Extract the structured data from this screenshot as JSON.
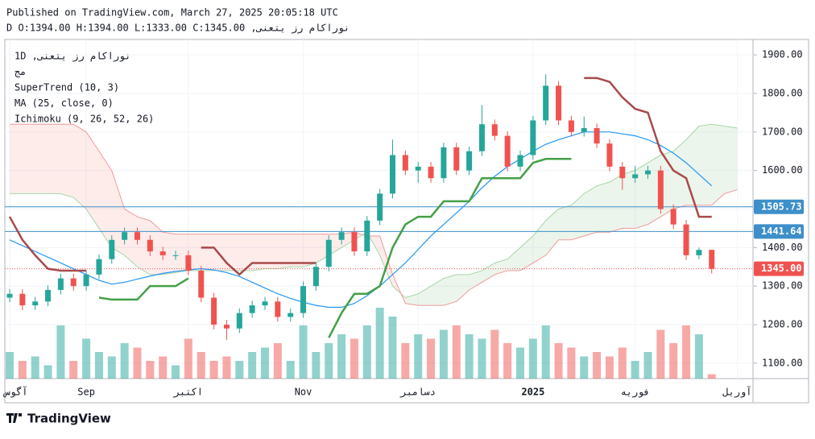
{
  "header": {
    "published": "Published on TradingView.com, March 27, 2025 20:05:18 UTC",
    "ohlc_line": "نوراکام رز یتعنی, D O:1394.00 H:1394.00 L:1333.00 C:1345.00"
  },
  "footer": {
    "brand": "TradingView"
  },
  "chart_data": {
    "type": "candlestick",
    "legend": [
      "نوراکام رز یتعنی, 1D",
      "مج",
      "SuperTrend (10, 3)",
      "MA (25, close, 0)",
      "Ichimoku (9, 26, 52, 26)"
    ],
    "ylim": [
      1060,
      1940
    ],
    "yticks": [
      {
        "value": 1100,
        "label": "1100.00"
      },
      {
        "value": 1200,
        "label": "1200.00"
      },
      {
        "value": 1300,
        "label": "1300.00"
      },
      {
        "value": 1400,
        "label": "1400.00"
      },
      {
        "value": 1500,
        "label": "1500.00"
      },
      {
        "value": 1600,
        "label": "1600.00"
      },
      {
        "value": 1700,
        "label": "1700.00"
      },
      {
        "value": 1800,
        "label": "1800.00"
      },
      {
        "value": 1900,
        "label": "1900.00"
      }
    ],
    "x_labels": [
      {
        "index": 0,
        "label": "آگوس"
      },
      {
        "index": 6,
        "label": "Sep"
      },
      {
        "index": 14,
        "label": "اکتبر"
      },
      {
        "index": 23,
        "label": "Nov"
      },
      {
        "index": 32,
        "label": "دسامبر"
      },
      {
        "index": 41,
        "label": "2025"
      },
      {
        "index": 49,
        "label": "فوریه"
      },
      {
        "index": 57,
        "label": "آوریل"
      }
    ],
    "up_color": "#26a69a",
    "down_color": "#ef5350",
    "candles": [
      [
        1270,
        1292,
        1258,
        1280
      ],
      [
        1280,
        1292,
        1238,
        1250
      ],
      [
        1250,
        1272,
        1238,
        1260
      ],
      [
        1260,
        1302,
        1248,
        1290
      ],
      [
        1290,
        1332,
        1278,
        1320
      ],
      [
        1320,
        1332,
        1288,
        1300
      ],
      [
        1300,
        1342,
        1288,
        1330
      ],
      [
        1330,
        1382,
        1318,
        1370
      ],
      [
        1370,
        1432,
        1358,
        1420
      ],
      [
        1420,
        1452,
        1408,
        1440
      ],
      [
        1440,
        1452,
        1408,
        1420
      ],
      [
        1420,
        1432,
        1378,
        1390
      ],
      [
        1390,
        1402,
        1368,
        1380
      ],
      [
        1380,
        1392,
        1368,
        1380
      ],
      [
        1380,
        1392,
        1328,
        1340
      ],
      [
        1340,
        1352,
        1258,
        1270
      ],
      [
        1270,
        1282,
        1188,
        1200
      ],
      [
        1200,
        1212,
        1160,
        1190
      ],
      [
        1190,
        1242,
        1178,
        1230
      ],
      [
        1230,
        1262,
        1218,
        1250
      ],
      [
        1250,
        1272,
        1238,
        1260
      ],
      [
        1260,
        1272,
        1208,
        1220
      ],
      [
        1220,
        1242,
        1208,
        1230
      ],
      [
        1230,
        1312,
        1218,
        1300
      ],
      [
        1300,
        1362,
        1288,
        1350
      ],
      [
        1350,
        1432,
        1338,
        1420
      ],
      [
        1420,
        1452,
        1408,
        1440
      ],
      [
        1440,
        1452,
        1378,
        1390
      ],
      [
        1390,
        1482,
        1378,
        1470
      ],
      [
        1470,
        1552,
        1458,
        1540
      ],
      [
        1540,
        1680,
        1528,
        1640
      ],
      [
        1640,
        1652,
        1588,
        1600
      ],
      [
        1600,
        1622,
        1568,
        1610
      ],
      [
        1610,
        1622,
        1568,
        1580
      ],
      [
        1580,
        1672,
        1568,
        1660
      ],
      [
        1660,
        1672,
        1588,
        1600
      ],
      [
        1600,
        1662,
        1588,
        1650
      ],
      [
        1650,
        1770,
        1638,
        1720
      ],
      [
        1720,
        1732,
        1678,
        1690
      ],
      [
        1690,
        1702,
        1598,
        1610
      ],
      [
        1610,
        1652,
        1598,
        1640
      ],
      [
        1640,
        1742,
        1628,
        1730
      ],
      [
        1730,
        1850,
        1718,
        1820
      ],
      [
        1820,
        1832,
        1718,
        1730
      ],
      [
        1730,
        1742,
        1688,
        1700
      ],
      [
        1700,
        1740,
        1688,
        1710
      ],
      [
        1710,
        1722,
        1658,
        1670
      ],
      [
        1670,
        1682,
        1598,
        1610
      ],
      [
        1610,
        1622,
        1550,
        1580
      ],
      [
        1580,
        1612,
        1568,
        1590
      ],
      [
        1590,
        1612,
        1578,
        1600
      ],
      [
        1600,
        1612,
        1488,
        1500
      ],
      [
        1500,
        1512,
        1448,
        1460
      ],
      [
        1460,
        1472,
        1368,
        1380
      ],
      [
        1380,
        1400,
        1370,
        1394
      ],
      [
        1394,
        1394,
        1333,
        1345
      ]
    ],
    "volumes": [
      30,
      20,
      25,
      15,
      60,
      20,
      45,
      30,
      25,
      40,
      35,
      20,
      25,
      15,
      45,
      30,
      20,
      25,
      20,
      30,
      35,
      40,
      20,
      60,
      30,
      40,
      50,
      45,
      60,
      80,
      70,
      40,
      50,
      45,
      55,
      60,
      50,
      45,
      55,
      40,
      35,
      45,
      60,
      40,
      35,
      25,
      30,
      25,
      35,
      20,
      30,
      55,
      40,
      60,
      50,
      5
    ],
    "vlim": [
      0,
      100
    ],
    "ma": {
      "color": "#2196f3",
      "values": [
        1420,
        1405,
        1390,
        1375,
        1360,
        1345,
        1330,
        1315,
        1305,
        1310,
        1318,
        1326,
        1333,
        1338,
        1342,
        1345,
        1342,
        1335,
        1325,
        1310,
        1295,
        1280,
        1268,
        1258,
        1250,
        1245,
        1245,
        1255,
        1275,
        1300,
        1330,
        1360,
        1395,
        1430,
        1460,
        1490,
        1520,
        1555,
        1585,
        1610,
        1630,
        1650,
        1668,
        1680,
        1690,
        1700,
        1700,
        1700,
        1695,
        1690,
        1680,
        1665,
        1645,
        1620,
        1590,
        1560
      ]
    },
    "supertrend": {
      "up_color": "#43a047",
      "down_color": "#a84a4a",
      "values": [
        1480,
        1420,
        1380,
        1345,
        1340,
        1340,
        1340,
        1270,
        1265,
        1265,
        1265,
        1300,
        1300,
        1300,
        1320,
        1400,
        1400,
        1360,
        1330,
        1360,
        1360,
        1360,
        1360,
        1360,
        1360,
        1166,
        1230,
        1280,
        1280,
        1300,
        1400,
        1460,
        1480,
        1480,
        1520,
        1520,
        1520,
        1580,
        1580,
        1580,
        1580,
        1620,
        1630,
        1630,
        1630,
        1840,
        1840,
        1830,
        1790,
        1760,
        1750,
        1650,
        1600,
        1580,
        1480,
        1480
      ]
    },
    "ichimoku": {
      "span_a_color": "#a5d6a7",
      "span_b_color": "#ef9a9a",
      "bull_fill": "rgba(67,160,71,0.10)",
      "bear_fill": "rgba(244,67,54,0.10)",
      "span_a": [
        1540,
        1540,
        1540,
        1540,
        1540,
        1530,
        1500,
        1450,
        1400,
        1380,
        1350,
        1330,
        1330,
        1335,
        1340,
        1340,
        1340,
        1340,
        1340,
        1340,
        1345,
        1345,
        1350,
        1350,
        1360,
        1380,
        1400,
        1420,
        1440,
        1380,
        1300,
        1270,
        1280,
        1300,
        1320,
        1330,
        1330,
        1340,
        1360,
        1370,
        1400,
        1430,
        1470,
        1500,
        1510,
        1540,
        1560,
        1570,
        1590,
        1600,
        1620,
        1640,
        1650,
        1680,
        1715,
        1720,
        1715,
        1710
      ],
      "span_b": [
        1720,
        1720,
        1720,
        1720,
        1720,
        1720,
        1700,
        1650,
        1600,
        1500,
        1480,
        1470,
        1440,
        1435,
        1435,
        1435,
        1435,
        1435,
        1435,
        1435,
        1435,
        1435,
        1435,
        1435,
        1435,
        1435,
        1435,
        1440,
        1430,
        1430,
        1330,
        1255,
        1250,
        1250,
        1250,
        1260,
        1290,
        1310,
        1330,
        1340,
        1340,
        1360,
        1380,
        1420,
        1420,
        1430,
        1440,
        1440,
        1450,
        1450,
        1460,
        1480,
        1500,
        1510,
        1510,
        1510,
        1540,
        1550
      ]
    },
    "price_lines": [
      {
        "value": 1505.73,
        "label": "1505.73",
        "color": "#3d8fc9",
        "style": "solid"
      },
      {
        "value": 1441.64,
        "label": "1441.64",
        "color": "#3d8fc9",
        "style": "solid"
      },
      {
        "value": 1345,
        "label": "1345.00",
        "color": "#ef5350",
        "style": "dotted"
      }
    ]
  }
}
